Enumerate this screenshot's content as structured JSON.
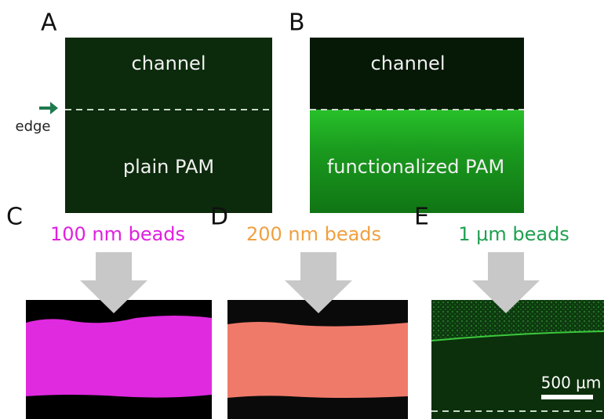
{
  "panels": [
    {
      "label": "A",
      "top_text": "channel",
      "bottom_text": "plain PAM",
      "edge_label": "edge"
    },
    {
      "label": "B",
      "top_text": "channel",
      "bottom_text": "functionalized PAM"
    },
    {
      "label": "C",
      "caption": "100 nm beads"
    },
    {
      "label": "D",
      "caption": "200 nm beads"
    },
    {
      "label": "E",
      "caption": "1 μm beads",
      "scale_bar": "500 μm"
    }
  ]
}
